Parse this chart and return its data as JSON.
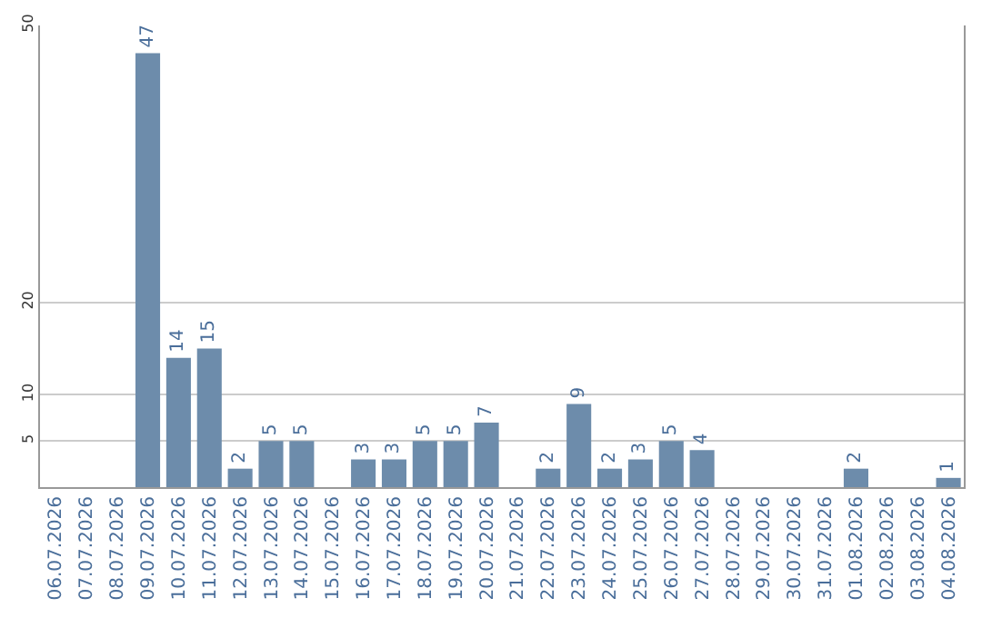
{
  "chart_data": {
    "type": "bar",
    "categories": [
      "06.07.2026",
      "07.07.2026",
      "08.07.2026",
      "09.07.2026",
      "10.07.2026",
      "11.07.2026",
      "12.07.2026",
      "13.07.2026",
      "14.07.2026",
      "15.07.2026",
      "16.07.2026",
      "17.07.2026",
      "18.07.2026",
      "19.07.2026",
      "20.07.2026",
      "21.07.2026",
      "22.07.2026",
      "23.07.2026",
      "24.07.2026",
      "25.07.2026",
      "26.07.2026",
      "27.07.2026",
      "28.07.2026",
      "29.07.2026",
      "30.07.2026",
      "31.07.2026",
      "01.08.2026",
      "02.08.2026",
      "03.08.2026",
      "04.08.2026"
    ],
    "values": [
      0,
      0,
      0,
      47,
      14,
      15,
      2,
      5,
      5,
      0,
      3,
      3,
      5,
      5,
      7,
      0,
      2,
      9,
      2,
      3,
      5,
      4,
      0,
      0,
      0,
      0,
      2,
      0,
      0,
      1
    ],
    "value_labels": [
      null,
      null,
      null,
      "47",
      "14",
      "15",
      "2",
      "5",
      "5",
      null,
      "3",
      "3",
      "5",
      "5",
      "7",
      null,
      "2",
      "9",
      "2",
      "3",
      "5",
      "4",
      null,
      null,
      null,
      null,
      "2",
      null,
      null,
      "1"
    ],
    "color": "#6d8cab",
    "ylim": [
      0,
      50
    ],
    "yticks": [
      5,
      10,
      20,
      50
    ],
    "grid": "y"
  }
}
